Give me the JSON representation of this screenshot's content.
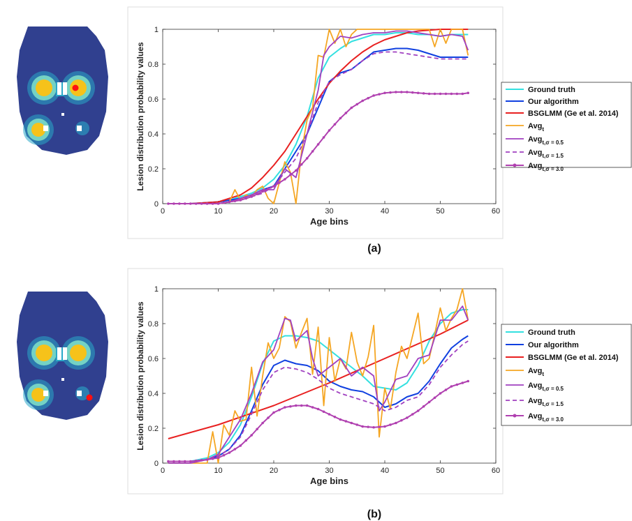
{
  "figure": {
    "panels": [
      "(a)",
      "(b)"
    ]
  },
  "colors": {
    "brain_bg": "#30408f",
    "brain_mid": "#2aa8c8",
    "brain_hot": "#f6c21a",
    "brain_ring": "#74d2c4",
    "marker": "#ff1010",
    "ground_truth": "#33e0e0",
    "our_algorithm": "#1040e0",
    "bsglmm": "#e82020",
    "avg_t": "#f5a623",
    "avg_05": "#a040c0",
    "avg_15": "#a040c0",
    "avg_30": "#b040b0"
  },
  "chart_data": [
    {
      "type": "line",
      "panel_label": "(a)",
      "xlabel": "Age bins",
      "ylabel": "Lesion distribution probability values",
      "xlim": [
        0,
        60
      ],
      "ylim": [
        0,
        1
      ],
      "xticks": [
        "0",
        "10",
        "20",
        "30",
        "40",
        "50",
        "60"
      ],
      "yticks": [
        "0",
        "0.2",
        "0.4",
        "0.6",
        "0.8",
        "1"
      ],
      "legend_position": "right-outside",
      "grid": false,
      "series": [
        {
          "name": "Ground truth",
          "key": "ground_truth",
          "x": [
            1,
            5,
            10,
            12,
            14,
            16,
            18,
            20,
            22,
            24,
            26,
            28,
            30,
            32,
            34,
            36,
            38,
            40,
            42,
            44,
            46,
            48,
            50,
            52,
            54,
            55
          ],
          "y": [
            0,
            0,
            0.01,
            0.02,
            0.04,
            0.06,
            0.09,
            0.14,
            0.22,
            0.34,
            0.5,
            0.72,
            0.84,
            0.89,
            0.93,
            0.95,
            0.97,
            0.97,
            0.98,
            0.98,
            0.97,
            0.97,
            0.96,
            0.97,
            0.97,
            0.97
          ]
        },
        {
          "name": "Our algorithm",
          "key": "our_algorithm",
          "x": [
            1,
            5,
            10,
            12,
            14,
            16,
            18,
            20,
            22,
            24,
            26,
            28,
            30,
            32,
            34,
            36,
            38,
            40,
            42,
            44,
            46,
            48,
            50,
            52,
            54,
            55
          ],
          "y": [
            0,
            0,
            0.01,
            0.02,
            0.03,
            0.05,
            0.08,
            0.1,
            0.2,
            0.3,
            0.4,
            0.55,
            0.7,
            0.75,
            0.77,
            0.82,
            0.87,
            0.88,
            0.89,
            0.89,
            0.88,
            0.86,
            0.84,
            0.84,
            0.84,
            0.84
          ]
        },
        {
          "name": "BSGLMM (Ge et al. 2014)",
          "key": "bsglmm",
          "x": [
            1,
            5,
            10,
            12,
            14,
            16,
            18,
            20,
            22,
            24,
            26,
            28,
            30,
            32,
            34,
            36,
            38,
            40,
            42,
            44,
            46,
            48,
            50,
            52,
            54,
            55
          ],
          "y": [
            0,
            0,
            0.01,
            0.03,
            0.05,
            0.09,
            0.15,
            0.22,
            0.3,
            0.4,
            0.5,
            0.6,
            0.69,
            0.76,
            0.82,
            0.87,
            0.91,
            0.94,
            0.96,
            0.98,
            0.99,
            0.995,
            1,
            1,
            1,
            1
          ]
        },
        {
          "name": "Avg_t",
          "key": "avg_t",
          "x": [
            1,
            5,
            10,
            12,
            13,
            14,
            15,
            16,
            17,
            18,
            19,
            20,
            21,
            22,
            23,
            24,
            25,
            26,
            27,
            28,
            29,
            30,
            31,
            32,
            33,
            34,
            35,
            36,
            38,
            40,
            42,
            44,
            46,
            48,
            49,
            50,
            51,
            52,
            53,
            54,
            55
          ],
          "y": [
            0,
            0,
            0,
            0.01,
            0.08,
            0.02,
            0.05,
            0.04,
            0.08,
            0.1,
            0.03,
            0,
            0.12,
            0.24,
            0.18,
            0,
            0.3,
            0.48,
            0.55,
            0.85,
            0.84,
            1,
            0.92,
            1,
            0.9,
            0.97,
            1,
            1,
            1,
            1,
            1,
            1,
            1,
            1,
            0.9,
            1,
            0.92,
            1,
            1,
            1,
            0.85
          ]
        },
        {
          "name": "Avg_{t,σ = 0.5}",
          "key": "avg_05",
          "x": [
            1,
            5,
            10,
            12,
            14,
            16,
            18,
            20,
            22,
            24,
            26,
            28,
            29,
            30,
            32,
            34,
            36,
            38,
            40,
            42,
            44,
            46,
            48,
            50,
            52,
            54,
            55
          ],
          "y": [
            0,
            0,
            0,
            0.01,
            0.03,
            0.05,
            0.08,
            0.08,
            0.2,
            0.15,
            0.4,
            0.65,
            0.85,
            0.9,
            0.96,
            0.95,
            0.97,
            0.98,
            0.98,
            0.99,
            0.99,
            0.98,
            0.97,
            0.96,
            0.97,
            0.96,
            0.88
          ]
        },
        {
          "name": "Avg_{t,σ = 1.5}",
          "key": "avg_15",
          "x": [
            1,
            5,
            10,
            12,
            14,
            16,
            18,
            20,
            22,
            24,
            26,
            28,
            30,
            32,
            34,
            36,
            38,
            40,
            42,
            44,
            46,
            48,
            50,
            52,
            54,
            55
          ],
          "y": [
            0,
            0,
            0,
            0.01,
            0.02,
            0.04,
            0.06,
            0.1,
            0.18,
            0.26,
            0.4,
            0.58,
            0.7,
            0.74,
            0.77,
            0.82,
            0.86,
            0.87,
            0.87,
            0.86,
            0.85,
            0.84,
            0.83,
            0.83,
            0.83,
            0.83
          ]
        },
        {
          "name": "Avg_{t,σ = 3.0}",
          "key": "avg_30",
          "x": [
            1,
            5,
            10,
            12,
            14,
            16,
            18,
            20,
            22,
            24,
            26,
            28,
            30,
            32,
            34,
            36,
            38,
            40,
            42,
            44,
            46,
            48,
            50,
            52,
            54,
            55
          ],
          "y": [
            0,
            0,
            0,
            0.01,
            0.02,
            0.04,
            0.07,
            0.1,
            0.14,
            0.19,
            0.26,
            0.34,
            0.42,
            0.49,
            0.55,
            0.59,
            0.62,
            0.635,
            0.64,
            0.64,
            0.635,
            0.63,
            0.63,
            0.63,
            0.63,
            0.635
          ]
        }
      ]
    },
    {
      "type": "line",
      "panel_label": "(b)",
      "xlabel": "Age bins",
      "ylabel": "Lesion distribution probability values",
      "xlim": [
        0,
        60
      ],
      "ylim": [
        0,
        1
      ],
      "xticks": [
        "0",
        "10",
        "20",
        "30",
        "40",
        "50",
        "60"
      ],
      "yticks": [
        "0",
        "0.2",
        "0.4",
        "0.6",
        "0.8",
        "1"
      ],
      "legend_position": "right-outside",
      "grid": false,
      "series": [
        {
          "name": "Ground truth",
          "key": "ground_truth",
          "x": [
            1,
            5,
            8,
            10,
            12,
            14,
            16,
            18,
            20,
            22,
            24,
            26,
            28,
            30,
            32,
            34,
            36,
            38,
            40,
            42,
            44,
            46,
            48,
            50,
            52,
            54,
            55
          ],
          "y": [
            0.01,
            0.01,
            0.03,
            0.06,
            0.12,
            0.22,
            0.38,
            0.57,
            0.7,
            0.73,
            0.73,
            0.72,
            0.7,
            0.65,
            0.6,
            0.55,
            0.5,
            0.44,
            0.43,
            0.42,
            0.46,
            0.56,
            0.7,
            0.8,
            0.86,
            0.88,
            0.88
          ]
        },
        {
          "name": "Our algorithm",
          "key": "our_algorithm",
          "x": [
            1,
            5,
            8,
            10,
            12,
            14,
            16,
            18,
            20,
            22,
            24,
            26,
            28,
            30,
            32,
            34,
            36,
            38,
            40,
            42,
            44,
            46,
            48,
            50,
            52,
            54,
            55
          ],
          "y": [
            0.01,
            0.01,
            0.02,
            0.04,
            0.08,
            0.16,
            0.3,
            0.45,
            0.56,
            0.59,
            0.57,
            0.56,
            0.53,
            0.47,
            0.44,
            0.42,
            0.41,
            0.38,
            0.32,
            0.34,
            0.38,
            0.4,
            0.47,
            0.57,
            0.66,
            0.71,
            0.73
          ]
        },
        {
          "name": "BSGLMM (Ge et al. 2014)",
          "key": "bsglmm",
          "x": [
            1,
            10,
            20,
            30,
            40,
            50,
            55
          ],
          "y": [
            0.14,
            0.22,
            0.33,
            0.46,
            0.6,
            0.74,
            0.82
          ]
        },
        {
          "name": "Avg_t",
          "key": "avg_t",
          "x": [
            1,
            5,
            8,
            9,
            10,
            11,
            12,
            13,
            14,
            15,
            16,
            17,
            18,
            19,
            20,
            21,
            22,
            23,
            24,
            25,
            26,
            27,
            28,
            29,
            30,
            31,
            32,
            33,
            34,
            35,
            36,
            37,
            38,
            39,
            40,
            41,
            42,
            43,
            44,
            45,
            46,
            47,
            48,
            49,
            50,
            51,
            52,
            53,
            54,
            55
          ],
          "y": [
            0,
            0,
            0,
            0.18,
            0,
            0.22,
            0.16,
            0.3,
            0.24,
            0.25,
            0.55,
            0.27,
            0.5,
            0.69,
            0.6,
            0.66,
            0.84,
            0.81,
            0.66,
            0.75,
            0.83,
            0.51,
            0.78,
            0.33,
            0.72,
            0.47,
            0.6,
            0.54,
            0.75,
            0.58,
            0.5,
            0.61,
            0.79,
            0.15,
            0.43,
            0.31,
            0.52,
            0.67,
            0.6,
            0.73,
            0.86,
            0.57,
            0.6,
            0.74,
            0.89,
            0.76,
            0.83,
            0.88,
            1,
            0.82
          ]
        },
        {
          "name": "Avg_{t,σ = 0.5}",
          "key": "avg_05",
          "x": [
            1,
            5,
            8,
            10,
            12,
            14,
            16,
            18,
            20,
            22,
            23,
            24,
            26,
            27,
            28,
            30,
            32,
            34,
            36,
            38,
            39,
            40,
            42,
            44,
            46,
            48,
            50,
            52,
            54,
            55
          ],
          "y": [
            0,
            0,
            0.02,
            0.05,
            0.15,
            0.25,
            0.4,
            0.58,
            0.65,
            0.83,
            0.82,
            0.7,
            0.76,
            0.6,
            0.5,
            0.55,
            0.6,
            0.5,
            0.55,
            0.5,
            0.3,
            0.35,
            0.48,
            0.5,
            0.6,
            0.62,
            0.82,
            0.82,
            0.9,
            0.82
          ]
        },
        {
          "name": "Avg_{t,σ = 1.5}",
          "key": "avg_15",
          "x": [
            1,
            5,
            8,
            10,
            12,
            14,
            16,
            18,
            20,
            22,
            24,
            26,
            28,
            30,
            32,
            34,
            36,
            38,
            40,
            42,
            44,
            46,
            48,
            50,
            52,
            54,
            55
          ],
          "y": [
            0.01,
            0.01,
            0.02,
            0.04,
            0.08,
            0.15,
            0.28,
            0.42,
            0.52,
            0.55,
            0.54,
            0.52,
            0.48,
            0.43,
            0.4,
            0.38,
            0.36,
            0.34,
            0.3,
            0.32,
            0.36,
            0.38,
            0.45,
            0.55,
            0.62,
            0.68,
            0.7
          ]
        },
        {
          "name": "Avg_{t,σ = 3.0}",
          "key": "avg_30",
          "x": [
            1,
            5,
            8,
            10,
            12,
            14,
            16,
            18,
            20,
            22,
            24,
            26,
            28,
            30,
            32,
            34,
            36,
            38,
            40,
            42,
            44,
            46,
            48,
            50,
            52,
            54,
            55
          ],
          "y": [
            0.01,
            0.01,
            0.02,
            0.03,
            0.06,
            0.1,
            0.16,
            0.23,
            0.29,
            0.32,
            0.33,
            0.33,
            0.31,
            0.28,
            0.25,
            0.23,
            0.21,
            0.205,
            0.21,
            0.23,
            0.26,
            0.3,
            0.35,
            0.4,
            0.44,
            0.46,
            0.47
          ]
        }
      ]
    }
  ]
}
